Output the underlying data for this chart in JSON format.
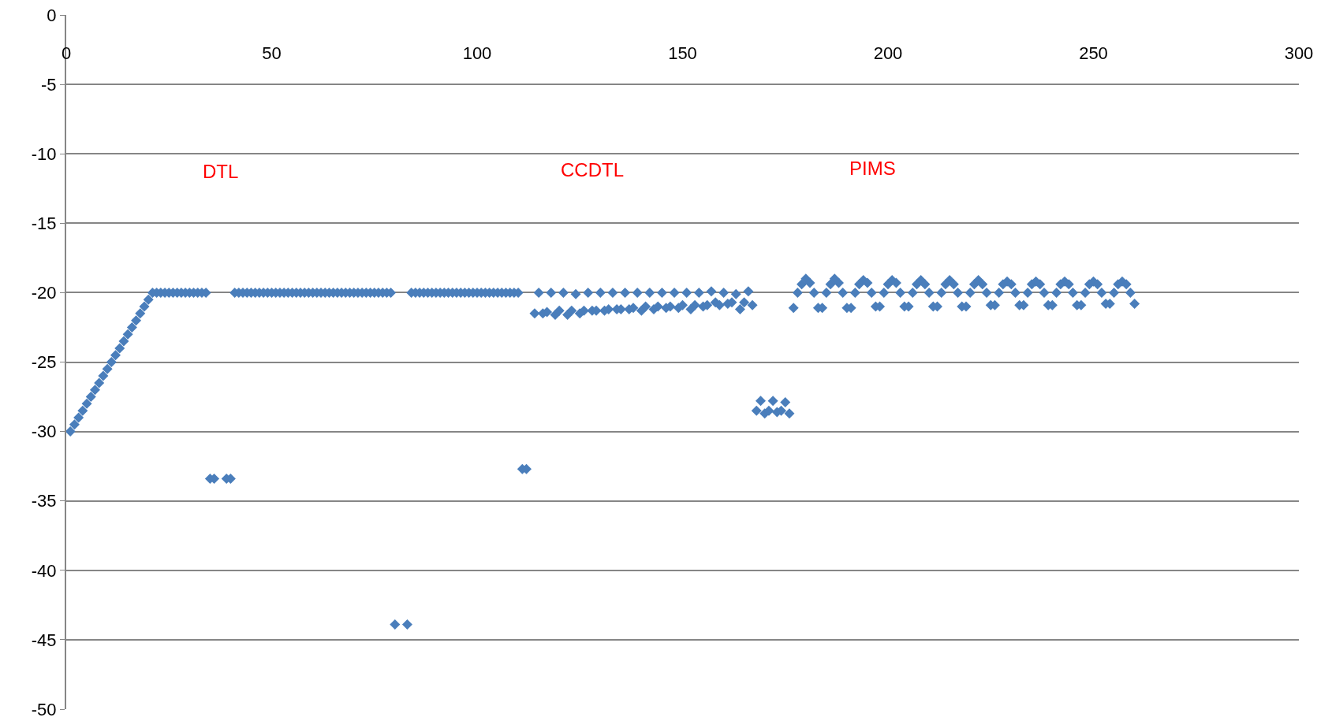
{
  "chart_data": {
    "type": "scatter",
    "xlim": [
      0,
      300
    ],
    "xticks": [
      0,
      50,
      100,
      150,
      200,
      250,
      300
    ],
    "ylim": [
      -50,
      0
    ],
    "yticks": [
      -50,
      -45,
      -40,
      -35,
      -30,
      -25,
      -20,
      -15,
      -10,
      -5,
      0
    ],
    "grid": "y",
    "marker": "diamond",
    "series": [
      {
        "color": "#4a7ebb",
        "x": [
          1,
          2,
          3,
          4,
          5,
          6,
          7,
          8,
          9,
          10,
          11,
          12,
          13,
          14,
          15,
          16,
          17,
          18,
          19,
          20,
          21,
          22,
          23,
          24,
          25,
          26,
          27,
          28,
          29,
          30,
          31,
          32,
          33,
          34,
          35,
          36,
          37,
          38,
          39,
          40,
          41,
          42,
          43,
          44,
          45,
          46,
          47,
          48,
          49,
          50,
          51,
          52,
          53,
          54,
          55,
          56,
          57,
          58,
          59,
          60,
          61,
          62,
          63,
          64,
          65,
          66,
          67,
          68,
          69,
          70,
          71,
          72,
          73,
          74,
          75,
          76,
          77,
          78,
          79,
          80,
          81,
          82,
          83,
          84,
          85,
          86,
          87,
          88,
          89,
          90,
          91,
          92,
          93,
          94,
          95,
          96,
          97,
          98,
          99,
          100,
          101,
          102,
          103,
          104,
          105,
          106,
          107,
          108,
          109,
          110,
          111,
          112,
          113,
          114,
          115,
          116,
          117,
          118,
          119,
          120,
          121,
          122,
          123,
          124,
          125,
          126,
          127,
          128,
          129,
          130,
          131,
          132,
          133,
          134,
          135,
          136,
          137,
          138,
          139,
          140,
          141,
          142,
          143,
          144,
          145,
          146,
          147,
          148,
          149,
          150,
          151,
          152,
          153,
          154,
          155,
          156,
          157,
          158,
          159,
          160,
          161,
          162,
          163,
          164,
          165,
          166,
          167,
          168,
          169,
          170,
          171,
          172,
          173,
          174,
          175,
          176,
          177,
          178,
          179,
          180,
          181,
          182,
          183,
          184,
          185,
          186,
          187,
          188,
          189,
          190,
          191,
          192,
          193,
          194,
          195,
          196,
          197,
          198,
          199,
          200,
          201,
          202,
          203,
          204,
          205,
          206,
          207,
          208,
          209,
          210,
          211,
          212,
          213,
          214,
          215,
          216,
          217,
          218,
          219,
          220,
          221,
          222,
          223,
          224,
          225,
          226,
          227,
          228,
          229,
          230,
          231,
          232,
          233,
          234,
          235,
          236,
          237,
          238,
          239,
          240,
          241,
          242,
          243,
          244,
          245,
          246,
          247,
          248,
          249,
          250,
          251,
          252,
          253,
          254,
          255,
          256,
          257,
          258,
          259,
          260
        ],
        "values": [
          -30,
          -29.5,
          -29,
          -28.5,
          -28,
          -27.5,
          -27,
          -26.5,
          -26,
          -25.5,
          -25,
          -24.5,
          -24,
          -23.5,
          -23,
          -22.5,
          -22,
          -21.5,
          -21,
          -20.5,
          -20,
          -20,
          -20,
          -20,
          -20,
          -20,
          -20,
          -20,
          -20,
          -20,
          -20,
          -20,
          -20,
          -20,
          -33.4,
          -33.4,
          null,
          null,
          -33.4,
          -33.4,
          -20,
          -20,
          -20,
          -20,
          -20,
          -20,
          -20,
          -20,
          -20,
          -20,
          -20,
          -20,
          -20,
          -20,
          -20,
          -20,
          -20,
          -20,
          -20,
          -20,
          -20,
          -20,
          -20,
          -20,
          -20,
          -20,
          -20,
          -20,
          -20,
          -20,
          -20,
          -20,
          -20,
          -20,
          -20,
          -20,
          -20,
          -20,
          -20,
          -43.9,
          null,
          null,
          -43.9,
          -20,
          -20,
          -20,
          -20,
          -20,
          -20,
          -20,
          -20,
          -20,
          -20,
          -20,
          -20,
          -20,
          -20,
          -20,
          -20,
          -20,
          -20,
          -20,
          -20,
          -20,
          -20,
          -20,
          -20,
          -20,
          -20,
          -20,
          -32.7,
          -32.7,
          null,
          -21.5,
          -20,
          -21.5,
          -21.4,
          -20,
          -21.6,
          -21.3,
          -20,
          -21.6,
          -21.3,
          -20.1,
          -21.5,
          -21.3,
          -20,
          -21.3,
          -21.3,
          -20,
          -21.3,
          -21.2,
          -20,
          -21.2,
          -21.2,
          -20,
          -21.2,
          -21.1,
          -20,
          -21.3,
          -21.0,
          -20,
          -21.2,
          -21.0,
          -20,
          -21.1,
          -21.0,
          -20,
          -21.1,
          -20.9,
          -20,
          -21.2,
          -20.9,
          -20,
          -21.0,
          -20.9,
          -19.9,
          -20.7,
          -20.9,
          -20,
          -20.8,
          -20.7,
          -20.1,
          -21.2,
          -20.7,
          -19.9,
          -20.9,
          -28.5,
          -27.8,
          -28.7,
          -28.5,
          -27.8,
          -28.6,
          -28.5,
          -27.9,
          -28.7,
          -21.1,
          -20,
          -19.4,
          -19.0,
          -19.3,
          -20,
          -21.1,
          -21.1,
          -20,
          -19.4,
          -19.0,
          -19.3,
          -20,
          -21.1,
          -21.1,
          -20,
          -19.4,
          -19.1,
          -19.3,
          -20,
          -21.0,
          -21.0,
          -20,
          -19.4,
          -19.1,
          -19.3,
          -20,
          -21.0,
          -21.0,
          -20,
          -19.4,
          -19.1,
          -19.4,
          -20,
          -21.0,
          -21.0,
          -20,
          -19.4,
          -19.1,
          -19.4,
          -20,
          -21.0,
          -21.0,
          -20,
          -19.4,
          -19.1,
          -19.4,
          -20,
          -20.9,
          -20.9,
          -20,
          -19.4,
          -19.2,
          -19.4,
          -20,
          -20.9,
          -20.9,
          -20,
          -19.4,
          -19.2,
          -19.4,
          -20,
          -20.9,
          -20.9,
          -20,
          -19.4,
          -19.2,
          -19.4,
          -20,
          -20.9,
          -20.9,
          -20,
          -19.4,
          -19.2,
          -19.4,
          -20,
          -20.8,
          -20.8,
          -20,
          -19.4,
          -19.2,
          -19.4,
          -20,
          -20.8
        ]
      }
    ],
    "annotations": [
      "DTL",
      "CCDTL",
      "PIMS"
    ]
  }
}
